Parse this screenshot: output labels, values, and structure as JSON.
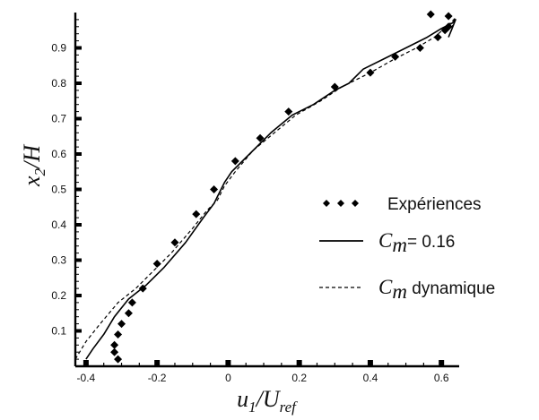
{
  "chart_data": {
    "type": "line",
    "xlabel": {
      "main": "u",
      "sub1": "1",
      "slash": "/U",
      "sub2": "ref"
    },
    "ylabel": {
      "main": "x",
      "sub": "2",
      "rest": "/H"
    },
    "xlim": [
      -0.43,
      0.65
    ],
    "ylim": [
      0.0,
      1.0
    ],
    "xticks": [
      -0.4,
      -0.2,
      0,
      0.2,
      0.4,
      0.6
    ],
    "xtick_labels": [
      "-0.4",
      "-0.2",
      "0",
      "0.2",
      "0.4",
      "0.6"
    ],
    "yticks": [
      0.1,
      0.2,
      0.3,
      0.4,
      0.5,
      0.6,
      0.7,
      0.8,
      0.9
    ],
    "ytick_labels": [
      "0.1",
      "0.2",
      "0.3",
      "0.4",
      "0.5",
      "0.6",
      "0.7",
      "0.8",
      "0.9"
    ],
    "legend_position": "right",
    "series": [
      {
        "name": "Expériences",
        "style": "diamond-markers",
        "color": "#000000",
        "x": [
          -0.31,
          -0.32,
          -0.32,
          -0.31,
          -0.3,
          -0.28,
          -0.27,
          -0.24,
          -0.2,
          -0.15,
          -0.09,
          -0.04,
          0.02,
          0.09,
          0.17,
          0.3,
          0.4,
          0.47,
          0.54,
          0.57,
          0.59,
          0.61,
          0.62,
          0.62
        ],
        "y": [
          0.02,
          0.04,
          0.06,
          0.09,
          0.12,
          0.15,
          0.18,
          0.22,
          0.29,
          0.35,
          0.43,
          0.5,
          0.58,
          0.645,
          0.72,
          0.79,
          0.83,
          0.875,
          0.9,
          0.995,
          0.93,
          0.95,
          0.96,
          0.99
        ]
      },
      {
        "name": "C_m = 0.16",
        "style": "solid",
        "color": "#000000",
        "x": [
          -0.4,
          -0.38,
          -0.35,
          -0.32,
          -0.28,
          -0.23,
          -0.18,
          -0.12,
          -0.07,
          -0.04,
          -0.03,
          -0.01,
          0.01,
          0.06,
          0.12,
          0.18,
          0.24,
          0.3,
          0.34,
          0.38,
          0.44,
          0.5,
          0.56,
          0.6,
          0.63,
          0.64,
          0.63,
          0.62
        ],
        "y": [
          0.02,
          0.05,
          0.09,
          0.14,
          0.19,
          0.23,
          0.28,
          0.35,
          0.42,
          0.46,
          0.48,
          0.52,
          0.55,
          0.6,
          0.66,
          0.71,
          0.74,
          0.78,
          0.8,
          0.84,
          0.87,
          0.9,
          0.93,
          0.955,
          0.97,
          0.98,
          0.955,
          0.93
        ]
      },
      {
        "name": "C_m dynamique",
        "style": "dashed",
        "color": "#000000",
        "x": [
          -0.43,
          -0.4,
          -0.36,
          -0.31,
          -0.26,
          -0.21,
          -0.16,
          -0.1,
          -0.06,
          -0.03,
          -0.01,
          0.02,
          0.07,
          0.13,
          0.19,
          0.26,
          0.32,
          0.4,
          0.47,
          0.53,
          0.58,
          0.62,
          0.64,
          0.63
        ],
        "y": [
          0.02,
          0.07,
          0.12,
          0.18,
          0.22,
          0.27,
          0.32,
          0.39,
          0.44,
          0.47,
          0.51,
          0.55,
          0.61,
          0.66,
          0.71,
          0.75,
          0.79,
          0.83,
          0.87,
          0.9,
          0.93,
          0.965,
          0.985,
          0.96
        ]
      }
    ],
    "legend": [
      {
        "label": "Expériences",
        "marker": "diamonds"
      },
      {
        "label_var": "C",
        "label_sub": "m",
        "label_rest": "=  0.16",
        "marker": "solid"
      },
      {
        "label_var": "C",
        "label_sub": "m",
        "label_rest": " dynamique",
        "marker": "dashed"
      }
    ]
  }
}
